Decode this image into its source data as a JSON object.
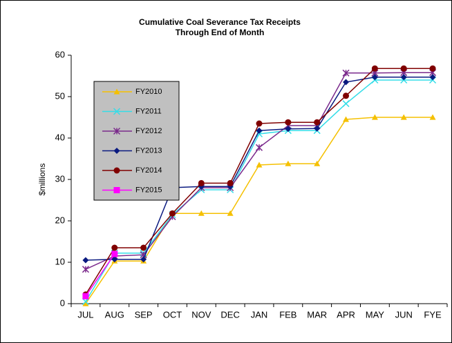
{
  "chart_data": {
    "type": "line",
    "title": [
      "Cumulative Coal Severance Tax Receipts",
      "Through End of Month"
    ],
    "y_label": "$millions",
    "categories": [
      "JUL",
      "AUG",
      "SEP",
      "OCT",
      "NOV",
      "DEC",
      "JAN",
      "FEB",
      "MAR",
      "APR",
      "MAY",
      "JUN",
      "FYE"
    ],
    "ylim": [
      0,
      60
    ],
    "yticks": [
      0,
      10,
      20,
      30,
      40,
      50,
      60
    ],
    "grid": false,
    "legend": "upper left",
    "series": [
      {
        "name": "FY2010",
        "color": "#f5c000",
        "marker": "triangle",
        "values": [
          0,
          10.3,
          10.3,
          21.8,
          21.8,
          21.8,
          33.5,
          33.8,
          33.8,
          44.5,
          45,
          45,
          45
        ]
      },
      {
        "name": "FY2011",
        "color": "#33dde8",
        "marker": "star",
        "values": [
          0.5,
          12.2,
          12.2,
          21.5,
          27.5,
          27.5,
          41,
          41.8,
          41.8,
          48.3,
          54,
          54,
          54
        ]
      },
      {
        "name": "FY2012",
        "color": "#7b2a8c",
        "marker": "asterisk",
        "values": [
          8.3,
          11.5,
          11.8,
          21,
          28,
          28,
          37.7,
          43,
          43,
          55.7,
          55.7,
          55.8,
          55.8
        ]
      },
      {
        "name": "FY2013",
        "color": "#0a1a80",
        "marker": "diamond",
        "values": [
          10.5,
          10.7,
          10.7,
          28,
          28.3,
          28.3,
          41.8,
          42.2,
          42.3,
          53.5,
          54.7,
          54.7,
          54.7
        ]
      },
      {
        "name": "FY2014",
        "color": "#800000",
        "marker": "circle",
        "values": [
          2.2,
          13.5,
          13.5,
          21.8,
          29.1,
          29.1,
          43.5,
          43.8,
          43.8,
          50.2,
          56.8,
          56.8,
          56.8
        ]
      },
      {
        "name": "FY2015",
        "color": "#ff00ff",
        "marker": "square",
        "values": [
          1.8,
          12,
          null,
          null,
          null,
          null,
          null,
          null,
          null,
          null,
          null,
          null,
          null
        ]
      }
    ]
  }
}
